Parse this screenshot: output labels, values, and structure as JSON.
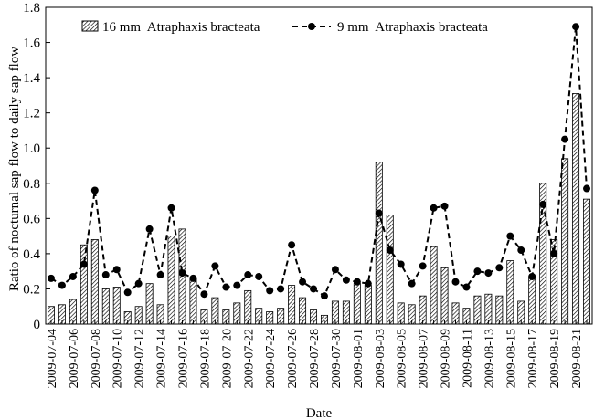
{
  "chart_data": {
    "type": "bar",
    "ylabel": "Ratio of nocturnal sap flow to daily sap flow",
    "xlabel": "Date",
    "ylim": [
      0,
      1.8
    ],
    "yticks": [
      "0",
      "0.2",
      "0.4",
      "0.6",
      "0.8",
      "1.0",
      "1.2",
      "1.4",
      "1.6",
      "1.8"
    ],
    "legend_position": "top",
    "categories": [
      "2009-07-04",
      "2009-07-05",
      "2009-07-06",
      "2009-07-07",
      "2009-07-08",
      "2009-07-09",
      "2009-07-10",
      "2009-07-11",
      "2009-07-12",
      "2009-07-13",
      "2009-07-14",
      "2009-07-15",
      "2009-07-16",
      "2009-07-17",
      "2009-07-18",
      "2009-07-19",
      "2009-07-20",
      "2009-07-21",
      "2009-07-22",
      "2009-07-23",
      "2009-07-24",
      "2009-07-25",
      "2009-07-26",
      "2009-07-27",
      "2009-07-28",
      "2009-07-29",
      "2009-07-30",
      "2009-07-31",
      "2009-08-01",
      "2009-08-02",
      "2009-08-03",
      "2009-08-04",
      "2009-08-05",
      "2009-08-06",
      "2009-08-07",
      "2009-08-08",
      "2009-08-09",
      "2009-08-10",
      "2009-08-11",
      "2009-08-12",
      "2009-08-13",
      "2009-08-14",
      "2009-08-15",
      "2009-08-16",
      "2009-08-17",
      "2009-08-18",
      "2009-08-19",
      "2009-08-20",
      "2009-08-21",
      "2009-08-22"
    ],
    "x_tick_labels": [
      "2009-07-04",
      "2009-07-06",
      "2009-07-08",
      "2009-07-10",
      "2009-07-12",
      "2009-07-14",
      "2009-07-16",
      "2009-07-18",
      "2009-07-20",
      "2009-07-22",
      "2009-07-24",
      "2009-07-26",
      "2009-07-28",
      "2009-07-30",
      "2009-08-01",
      "2009-08-03",
      "2009-08-05",
      "2009-08-07",
      "2009-08-09",
      "2009-08-11",
      "2009-08-13",
      "2009-08-15",
      "2009-08-17",
      "2009-08-19",
      "2009-08-21"
    ],
    "series": [
      {
        "name": "16 mm  Atraphaxis bracteata",
        "kind": "bar",
        "color": "#000000",
        "values": [
          0.1,
          0.11,
          0.14,
          0.45,
          0.48,
          0.2,
          0.21,
          0.07,
          0.1,
          0.23,
          0.11,
          0.5,
          0.54,
          0.26,
          0.08,
          0.15,
          0.08,
          0.12,
          0.19,
          0.09,
          0.07,
          0.09,
          0.22,
          0.15,
          0.08,
          0.05,
          0.13,
          0.13,
          0.23,
          0.22,
          0.92,
          0.62,
          0.12,
          0.11,
          0.16,
          0.44,
          0.32,
          0.12,
          0.09,
          0.16,
          0.17,
          0.16,
          0.36,
          0.13,
          0.27,
          0.8,
          0.48,
          0.94,
          1.31,
          0.71
        ]
      },
      {
        "name": "9 mm  Atraphaxis bracteata",
        "kind": "line",
        "color": "#000000",
        "values": [
          0.26,
          0.22,
          0.27,
          0.34,
          0.76,
          0.28,
          0.31,
          0.18,
          0.23,
          0.54,
          0.28,
          0.66,
          0.29,
          0.26,
          0.17,
          0.33,
          0.21,
          0.22,
          0.28,
          0.27,
          0.19,
          0.2,
          0.45,
          0.24,
          0.2,
          0.16,
          0.31,
          0.25,
          0.24,
          0.23,
          0.63,
          0.42,
          0.34,
          0.23,
          0.33,
          0.66,
          0.67,
          0.24,
          0.21,
          0.3,
          0.29,
          0.32,
          0.5,
          0.42,
          0.27,
          0.68,
          0.4,
          1.05,
          1.69,
          0.77
        ]
      }
    ]
  }
}
